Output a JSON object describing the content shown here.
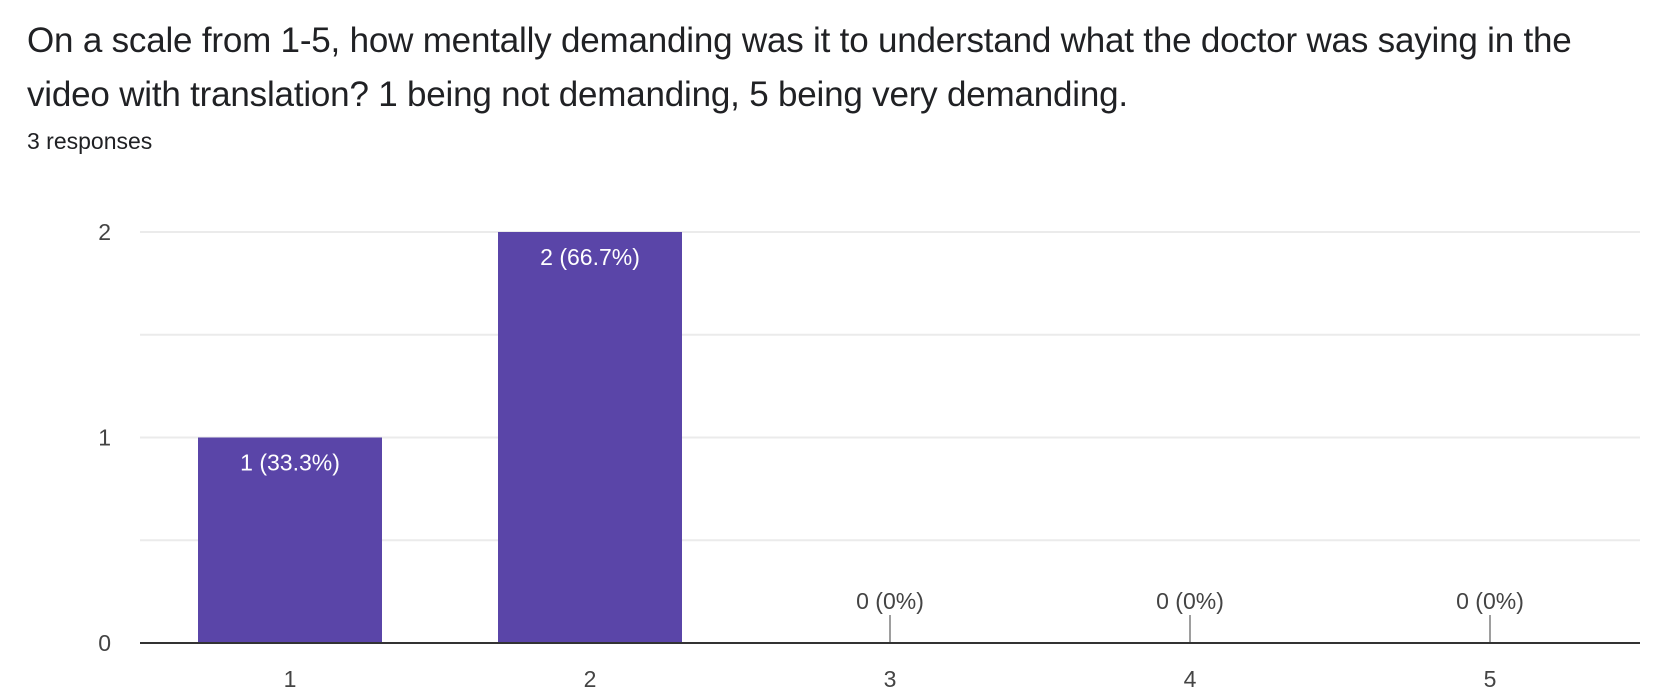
{
  "question": {
    "text": "On a scale from 1-5, how mentally demanding was it to understand what the doctor was saying in the video with translation? 1 being not demanding, 5 being very demanding.",
    "response_count": "3 responses"
  },
  "colors": {
    "bar": "#5a45a8",
    "grid": "#ebebeb",
    "axis": "#333333",
    "text": "#202124",
    "tick_text": "#444444",
    "bar_label_inside": "#ffffff"
  },
  "chart_data": {
    "type": "bar",
    "title": "",
    "xlabel": "",
    "ylabel": "",
    "categories": [
      "1",
      "2",
      "3",
      "4",
      "5"
    ],
    "values": [
      1,
      2,
      0,
      0,
      0
    ],
    "data_labels": [
      "1 (33.3%)",
      "2 (66.7%)",
      "0 (0%)",
      "0 (0%)",
      "0 (0%)"
    ],
    "ylim": [
      0,
      2
    ],
    "yticks": [
      "0",
      "1",
      "2"
    ],
    "grid": true,
    "legend": "none"
  }
}
